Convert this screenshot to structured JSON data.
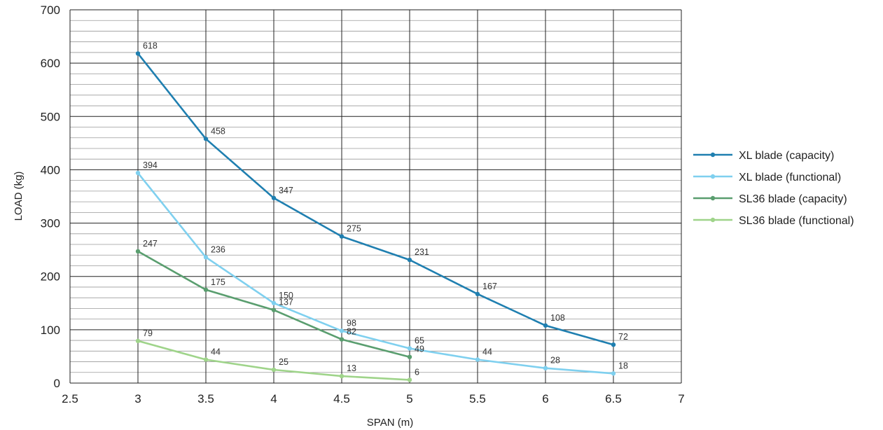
{
  "chart_data": {
    "type": "line",
    "xlabel": "SPAN (m)",
    "ylabel": "LOAD (kg)",
    "xlim": [
      2.5,
      7
    ],
    "ylim": [
      0,
      700
    ],
    "x_ticks": [
      "2.5",
      "3",
      "3.5",
      "4",
      "4.5",
      "5",
      "5.5",
      "6",
      "6.5",
      "7"
    ],
    "y_ticks": [
      "0",
      "100",
      "200",
      "300",
      "400",
      "500",
      "600",
      "700"
    ],
    "grid": true,
    "legend_position": "right",
    "series": [
      {
        "name": "XL blade (capacity)",
        "color": "#1f7fb0",
        "x": [
          3,
          3.5,
          4,
          4.5,
          5,
          5.5,
          6,
          6.5
        ],
        "values": [
          618,
          458,
          347,
          275,
          231,
          167,
          108,
          72
        ],
        "labels": [
          "618",
          "458",
          "347",
          "275",
          "231",
          "167",
          "108",
          "72"
        ]
      },
      {
        "name": "XL blade (functional)",
        "color": "#7fd0ef",
        "x": [
          3,
          3.5,
          4,
          4.5,
          5,
          5.5,
          6,
          6.5
        ],
        "values": [
          394,
          236,
          150,
          98,
          65,
          44,
          28,
          18
        ],
        "labels": [
          "394",
          "236",
          "150",
          "98",
          "65",
          "44",
          "28",
          "18"
        ]
      },
      {
        "name": "SL36 blade (capacity)",
        "color": "#5a9e6f",
        "x": [
          3,
          3.5,
          4,
          4.5,
          5
        ],
        "values": [
          247,
          175,
          137,
          82,
          49
        ],
        "labels": [
          "247",
          "175",
          "137",
          "82",
          "49"
        ]
      },
      {
        "name": "SL36 blade (functional)",
        "color": "#9fd48a",
        "x": [
          3,
          3.5,
          4,
          4.5,
          5
        ],
        "values": [
          79,
          44,
          25,
          13,
          6
        ],
        "labels": [
          "79",
          "44",
          "25",
          "13",
          "6"
        ]
      }
    ]
  }
}
